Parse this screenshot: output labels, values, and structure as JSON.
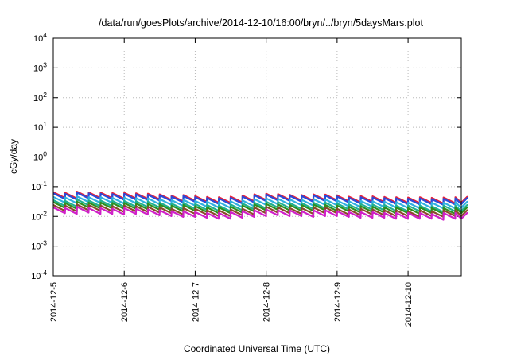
{
  "chart_data": {
    "type": "line",
    "title": "/data/run/goesPlots/archive/2014-12-10/16:00/bryn/../bryn/5daysMars.plot",
    "xlabel": "Coordinated Universal Time (UTC)",
    "ylabel": "cGy/day",
    "yscale": "log",
    "ylim": [
      0.0001,
      10000
    ],
    "y_ticks": [
      {
        "base": "10",
        "exp": "4"
      },
      {
        "base": "10",
        "exp": "3"
      },
      {
        "base": "10",
        "exp": "2"
      },
      {
        "base": "10",
        "exp": "1"
      },
      {
        "base": "10",
        "exp": "0"
      },
      {
        "base": "10",
        "exp": "-1"
      },
      {
        "base": "10",
        "exp": "-2"
      },
      {
        "base": "10",
        "exp": "-3"
      },
      {
        "base": "10",
        "exp": "-4"
      }
    ],
    "x_ticks": [
      "2014-12-5",
      "2014-12-6",
      "2014-12-7",
      "2014-12-8",
      "2014-12-9",
      "2014-12-10"
    ],
    "xlim_days": [
      0,
      5.75
    ],
    "grid": true,
    "sawtooth_period_hours": 4,
    "series": [
      {
        "color": "#e8203a",
        "values": [
          0.065,
          0.062,
          0.068,
          0.064,
          0.063,
          0.061,
          0.062,
          0.06,
          0.058,
          0.055,
          0.05,
          0.052,
          0.048,
          0.045,
          0.044,
          0.046,
          0.05,
          0.055,
          0.058,
          0.056,
          0.053,
          0.052,
          0.055,
          0.054,
          0.05,
          0.046,
          0.048,
          0.047,
          0.045,
          0.044,
          0.043,
          0.044,
          0.042,
          0.043,
          0.044,
          0.045
        ]
      },
      {
        "color": "#2b4bd8",
        "values": [
          0.06,
          0.057,
          0.063,
          0.059,
          0.058,
          0.056,
          0.057,
          0.055,
          0.053,
          0.051,
          0.046,
          0.048,
          0.044,
          0.041,
          0.04,
          0.042,
          0.046,
          0.051,
          0.054,
          0.052,
          0.049,
          0.048,
          0.051,
          0.05,
          0.046,
          0.042,
          0.044,
          0.043,
          0.041,
          0.04,
          0.039,
          0.04,
          0.038,
          0.039,
          0.04,
          0.041
        ]
      },
      {
        "color": "#30b0e0",
        "values": [
          0.045,
          0.043,
          0.047,
          0.044,
          0.044,
          0.042,
          0.043,
          0.041,
          0.04,
          0.038,
          0.035,
          0.036,
          0.033,
          0.031,
          0.03,
          0.032,
          0.034,
          0.038,
          0.04,
          0.039,
          0.037,
          0.036,
          0.038,
          0.037,
          0.034,
          0.032,
          0.033,
          0.032,
          0.031,
          0.03,
          0.029,
          0.03,
          0.029,
          0.029,
          0.03,
          0.031
        ]
      },
      {
        "color": "#20b090",
        "values": [
          0.035,
          0.033,
          0.037,
          0.034,
          0.034,
          0.033,
          0.033,
          0.032,
          0.031,
          0.029,
          0.027,
          0.028,
          0.026,
          0.024,
          0.023,
          0.025,
          0.027,
          0.029,
          0.031,
          0.03,
          0.028,
          0.028,
          0.029,
          0.029,
          0.027,
          0.025,
          0.026,
          0.025,
          0.024,
          0.023,
          0.023,
          0.023,
          0.022,
          0.023,
          0.023,
          0.024
        ]
      },
      {
        "color": "#2e8f1f",
        "values": [
          0.03,
          0.028,
          0.031,
          0.029,
          0.029,
          0.028,
          0.028,
          0.027,
          0.026,
          0.025,
          0.023,
          0.024,
          0.022,
          0.02,
          0.02,
          0.021,
          0.023,
          0.025,
          0.026,
          0.025,
          0.024,
          0.024,
          0.025,
          0.024,
          0.023,
          0.021,
          0.022,
          0.021,
          0.02,
          0.02,
          0.019,
          0.02,
          0.019,
          0.019,
          0.02,
          0.02
        ]
      },
      {
        "color": "#8a4a2a",
        "values": [
          0.024,
          0.023,
          0.025,
          0.024,
          0.023,
          0.022,
          0.023,
          0.022,
          0.021,
          0.02,
          0.018,
          0.019,
          0.018,
          0.016,
          0.016,
          0.017,
          0.018,
          0.02,
          0.021,
          0.02,
          0.019,
          0.019,
          0.02,
          0.02,
          0.018,
          0.017,
          0.018,
          0.017,
          0.016,
          0.016,
          0.015,
          0.016,
          0.015,
          0.016,
          0.016,
          0.016
        ]
      },
      {
        "color": "#d020c8",
        "values": [
          0.02,
          0.019,
          0.021,
          0.019,
          0.019,
          0.018,
          0.019,
          0.018,
          0.017,
          0.016,
          0.015,
          0.015,
          0.014,
          0.013,
          0.013,
          0.014,
          0.015,
          0.016,
          0.017,
          0.016,
          0.016,
          0.015,
          0.016,
          0.016,
          0.015,
          0.014,
          0.014,
          0.014,
          0.013,
          0.013,
          0.013,
          0.013,
          0.012,
          0.013,
          0.013,
          0.013
        ]
      }
    ]
  }
}
